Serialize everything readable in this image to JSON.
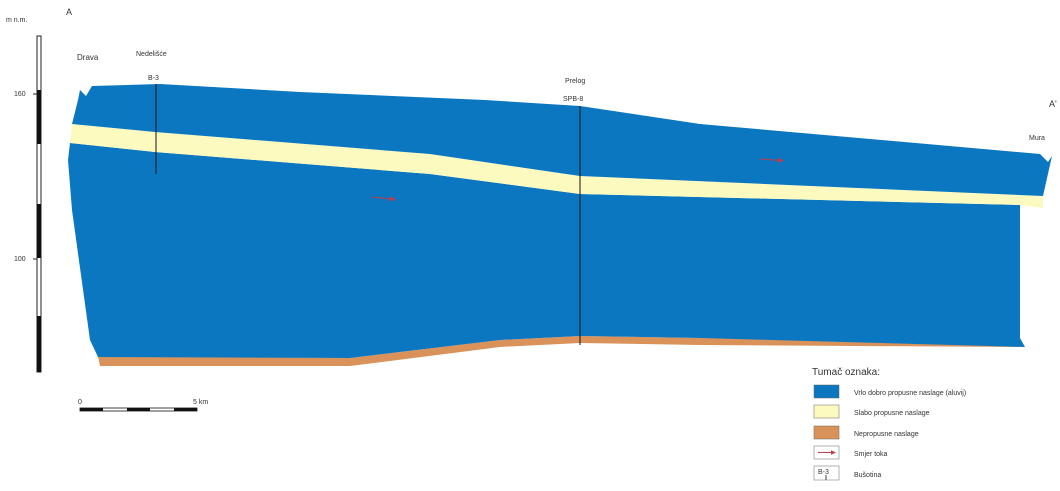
{
  "section": {
    "label_left": "A",
    "label_right": "A'",
    "axis_unit": "m n.m.",
    "ticks": [
      "160",
      "100"
    ],
    "places": {
      "drava": "Drava",
      "nedelisce": "Nedelišće",
      "well_b3": "B-3",
      "prelog": "Prelog",
      "well_spb8": "SPB-8",
      "mura": "Mura"
    }
  },
  "scalebar": {
    "start": "0",
    "end": "5 km"
  },
  "legend": {
    "title": "Tumač oznaka:",
    "items": [
      {
        "label": "Vrlo dobro propusne naslage (aluvij)",
        "color": "#0b77c0"
      },
      {
        "label": "Slabo propusne naslage",
        "color": "#fdfac0"
      },
      {
        "label": "Nepropusne naslage",
        "color": "#d9935a"
      },
      {
        "label": "Smjer toka",
        "icon": "flow-arrow-icon"
      },
      {
        "label": "Bušotina",
        "symbol": "B-3"
      }
    ]
  },
  "colors": {
    "aquifer": "#0b77c0",
    "clay": "#fdfac0",
    "impermeable": "#d9935a",
    "flow_arrow": "#c23a4c"
  }
}
